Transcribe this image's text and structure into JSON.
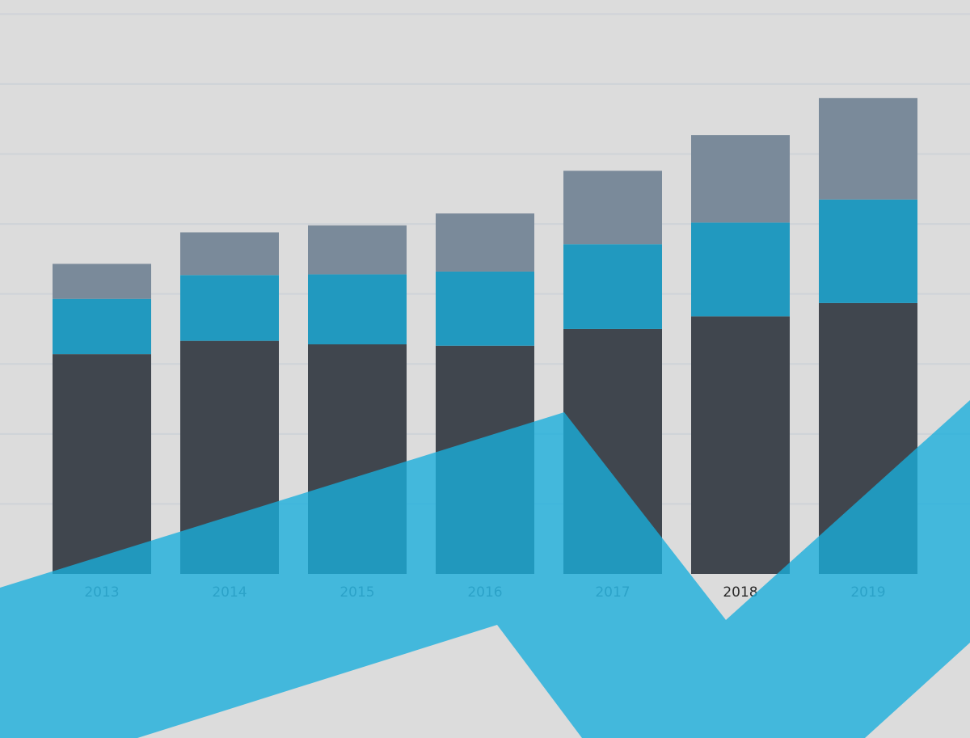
{
  "chart_data": {
    "type": "bar",
    "stacked": true,
    "title": "",
    "xlabel": "",
    "ylabel": "",
    "categories": [
      "2013",
      "2014",
      "2015",
      "2016",
      "2017",
      "2018",
      "2019"
    ],
    "highlighted_category": "2018",
    "series": [
      {
        "values": [
          31.4,
          33.3,
          32.8,
          32.6,
          35.0,
          36.8,
          38.7
        ],
        "color": "#40464e"
      },
      {
        "values": [
          7.9,
          9.4,
          10.0,
          10.6,
          12.1,
          13.4,
          14.8
        ],
        "color": "#2199bf"
      },
      {
        "values": [
          5.0,
          6.1,
          7.0,
          8.3,
          10.5,
          12.5,
          14.5
        ],
        "color": "#7a8a9a"
      }
    ],
    "ylim": [
      0,
      82
    ],
    "grid": true,
    "y_tick_labels_shown": false,
    "legend": "none",
    "overlay": {
      "shape": "zigzag-arrow-band",
      "color": "#1aaedc",
      "opacity": 0.79
    },
    "colors": {
      "background": "#dcdcdc",
      "grid": "#cfd3d8"
    }
  }
}
